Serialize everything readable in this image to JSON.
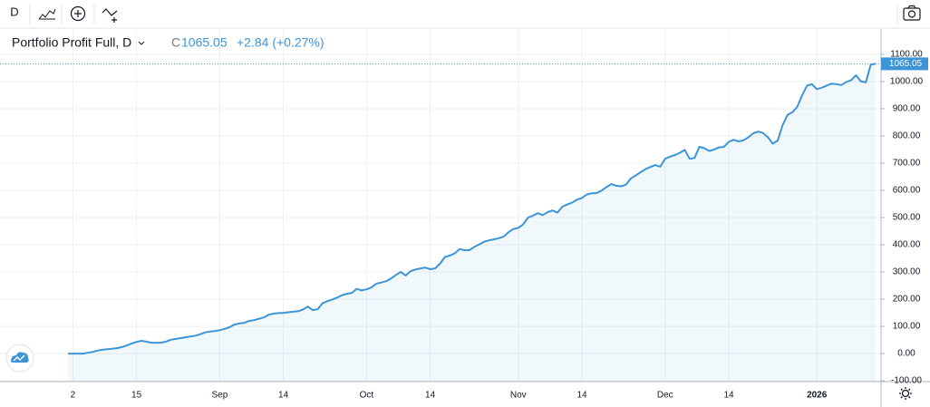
{
  "toolbar": {
    "interval": "D"
  },
  "chart_data": {
    "type": "area",
    "legend_close_label": "C",
    "legend_change": "+2.84 (+0.27%)",
    "categories": [
      null,
      "2",
      null,
      null,
      null,
      null,
      null,
      null,
      null,
      null,
      null,
      null,
      null,
      null,
      "15",
      null,
      null,
      null,
      null,
      null,
      null,
      null,
      null,
      null,
      null,
      null,
      null,
      null,
      null,
      null,
      null,
      "Sep",
      null,
      null,
      null,
      null,
      null,
      null,
      null,
      null,
      null,
      null,
      null,
      null,
      "14",
      null,
      null,
      null,
      null,
      null,
      null,
      null,
      null,
      null,
      null,
      null,
      null,
      null,
      null,
      null,
      null,
      "Oct",
      null,
      null,
      null,
      null,
      null,
      null,
      null,
      null,
      null,
      null,
      null,
      null,
      "14",
      null,
      null,
      null,
      null,
      null,
      null,
      null,
      null,
      null,
      null,
      null,
      null,
      null,
      null,
      null,
      null,
      null,
      "Nov",
      null,
      null,
      null,
      null,
      null,
      null,
      null,
      null,
      null,
      null,
      null,
      null,
      "14",
      null,
      null,
      null,
      null,
      null,
      null,
      null,
      null,
      null,
      null,
      null,
      null,
      null,
      null,
      null,
      null,
      "Dec",
      null,
      null,
      null,
      null,
      null,
      null,
      null,
      null,
      null,
      null,
      null,
      null,
      "14",
      null,
      null,
      null,
      null,
      null,
      null,
      null,
      null,
      null,
      null,
      null,
      null,
      null,
      null,
      null,
      null,
      null,
      "2026",
      null,
      null,
      null,
      null,
      null,
      null,
      null,
      null,
      null,
      null,
      null,
      null
    ],
    "series": [
      {
        "name": "Portfolio Profit Full, D",
        "color": "#3d95d8",
        "values": [
          0,
          0,
          0,
          0,
          3,
          6,
          11,
          14,
          16,
          18,
          20,
          24,
          30,
          37,
          43,
          47,
          44,
          40,
          40,
          40,
          44,
          51,
          54,
          57,
          60,
          63,
          66,
          71,
          78,
          81,
          83,
          86,
          91,
          97,
          107,
          111,
          113,
          120,
          123,
          128,
          133,
          143,
          147,
          149,
          150,
          152,
          154,
          156,
          162,
          173,
          160,
          163,
          185,
          193,
          199,
          206,
          215,
          220,
          223,
          238,
          232,
          236,
          243,
          257,
          261,
          266,
          276,
          289,
          300,
          287,
          303,
          309,
          313,
          316,
          310,
          313,
          330,
          355,
          360,
          368,
          384,
          380,
          380,
          392,
          401,
          411,
          416,
          420,
          424,
          430,
          446,
          458,
          462,
          475,
          500,
          507,
          516,
          509,
          520,
          526,
          518,
          540,
          548,
          555,
          566,
          572,
          585,
          589,
          590,
          599,
          612,
          623,
          617,
          615,
          621,
          644,
          655,
          667,
          678,
          686,
          693,
          687,
          716,
          724,
          730,
          738,
          749,
          716,
          719,
          760,
          755,
          745,
          750,
          758,
          760,
          778,
          786,
          780,
          784,
          795,
          810,
          816,
          811,
          795,
          772,
          783,
          840,
          877,
          887,
          907,
          950,
          985,
          990,
          972,
          977,
          985,
          992,
          990,
          987,
          998,
          1005,
          1023,
          1000,
          997,
          1062.21,
          1065.05
        ]
      }
    ],
    "ylim": [
      -103,
      1193
    ],
    "yticks": [
      {
        "value": -100,
        "label": "-100.00"
      },
      {
        "value": 0,
        "label": "0.00"
      },
      {
        "value": 100,
        "label": "100.00"
      },
      {
        "value": 200,
        "label": "200.00"
      },
      {
        "value": 300,
        "label": "300.00"
      },
      {
        "value": 400,
        "label": "400.00"
      },
      {
        "value": 500,
        "label": "500.00"
      },
      {
        "value": 600,
        "label": "600.00"
      },
      {
        "value": 700,
        "label": "700.00"
      },
      {
        "value": 800,
        "label": "800.00"
      },
      {
        "value": 900,
        "label": "900.00"
      },
      {
        "value": 1000,
        "label": "1000.00"
      },
      {
        "value": 1100,
        "label": "1100.00"
      }
    ],
    "grid": true
  }
}
